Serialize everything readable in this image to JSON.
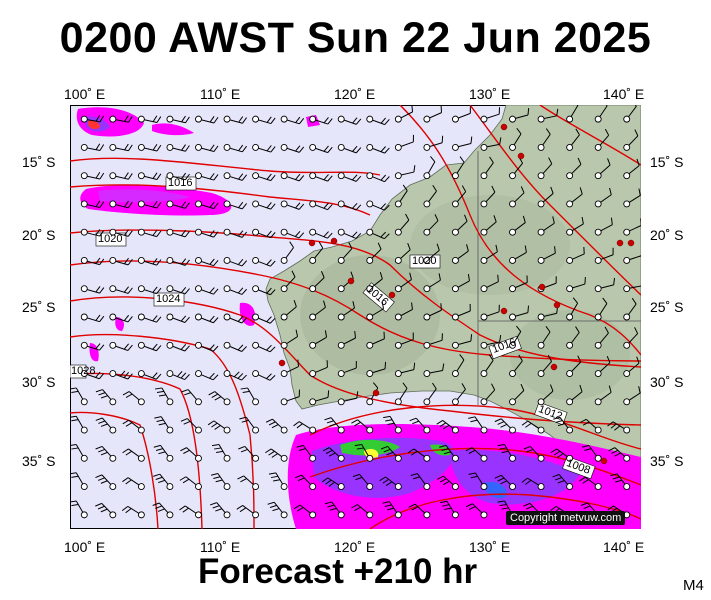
{
  "title": "0200 AWST Sun 22 Jun 2025",
  "footer": "Forecast +210 hr",
  "model": "M4",
  "copyright": "Copyright metvuw.com",
  "axes": {
    "lon_labels": [
      "100˚ E",
      "110˚ E",
      "120˚ E",
      "130˚ E",
      "140˚ E"
    ],
    "lat_labels": [
      "15˚ S",
      "20˚ S",
      "25˚ S",
      "30˚ S",
      "35˚ S"
    ]
  },
  "isobar_labels": [
    "1016",
    "1020",
    "1024",
    "1028",
    "1020",
    "1016",
    "1016",
    "1012",
    "1008"
  ],
  "colors": {
    "ocean": "#e6e6fb",
    "land": "#b9c8ad",
    "isobar": "#e00000",
    "rain_magenta": "#ff00ff",
    "rain_purple": "#9933ff",
    "rain_green": "#33cc33"
  }
}
